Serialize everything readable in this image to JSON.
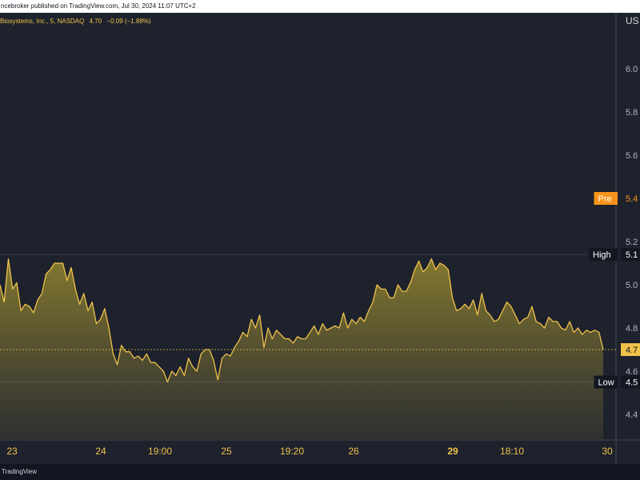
{
  "header": {
    "publisher_text": "ncebroker published on TradingView.com, Jul 30, 2024 11:07 UTC+2"
  },
  "legend": {
    "symbol": "Biosystems, Inc., 5, NASDAQ",
    "last": "4.70",
    "change": "−0.09 (−1.88%)"
  },
  "axis": {
    "currency_label": "US",
    "y_ticks": [
      "6.0",
      "5.8",
      "5.6",
      "5.2",
      "5.0",
      "4.8",
      "4.6",
      "4.4"
    ],
    "x_ticks": [
      "23",
      "24",
      "19:00",
      "25",
      "19:20",
      "26",
      "29",
      "18:10",
      "30"
    ]
  },
  "markers": {
    "pre": {
      "label": "Pre",
      "value": "5.4"
    },
    "high": {
      "label": "High",
      "value": "5.1"
    },
    "last": {
      "value": "4.7"
    },
    "low": {
      "label": "Low",
      "value": "4.5"
    }
  },
  "footer": {
    "brand": "TradingView"
  },
  "colors": {
    "background": "#1e222d",
    "line": "#f0c24a",
    "pre_badge": "#f7931a",
    "axis_text": "#d1d4dc",
    "x_tick_text": "#f0c24a"
  },
  "chart_data": {
    "type": "area",
    "ylim": [
      4.3,
      6.2
    ],
    "high": 5.14,
    "low": 4.55,
    "last": 4.7,
    "pre": 5.4,
    "values": [
      5.0,
      4.92,
      5.12,
      4.98,
      5.01,
      4.88,
      4.91,
      4.9,
      4.87,
      4.93,
      4.96,
      5.05,
      5.07,
      5.1,
      5.1,
      5.1,
      5.02,
      5.08,
      4.98,
      4.91,
      4.96,
      4.88,
      4.92,
      4.82,
      4.84,
      4.89,
      4.8,
      4.68,
      4.63,
      4.72,
      4.69,
      4.69,
      4.66,
      4.67,
      4.65,
      4.68,
      4.64,
      4.64,
      4.62,
      4.6,
      4.55,
      4.6,
      4.58,
      4.62,
      4.58,
      4.66,
      4.62,
      4.6,
      4.68,
      4.7,
      4.7,
      4.65,
      4.56,
      4.66,
      4.68,
      4.67,
      4.71,
      4.74,
      4.78,
      4.76,
      4.84,
      4.8,
      4.86,
      4.71,
      4.8,
      4.75,
      4.79,
      4.77,
      4.75,
      4.75,
      4.73,
      4.76,
      4.75,
      4.75,
      4.78,
      4.81,
      4.77,
      4.82,
      4.79,
      4.8,
      4.81,
      4.8,
      4.87,
      4.8,
      4.84,
      4.82,
      4.85,
      4.83,
      4.88,
      4.92,
      5.0,
      4.98,
      4.98,
      4.94,
      4.94,
      5.0,
      4.97,
      4.97,
      5.01,
      5.07,
      5.11,
      5.06,
      5.08,
      5.12,
      5.07,
      5.1,
      5.09,
      5.07,
      4.94,
      4.88,
      4.89,
      4.91,
      4.89,
      4.93,
      4.86,
      4.96,
      4.88,
      4.86,
      4.83,
      4.84,
      4.88,
      4.92,
      4.9,
      4.86,
      4.82,
      4.84,
      4.85,
      4.9,
      4.83,
      4.82,
      4.8,
      4.85,
      4.83,
      4.83,
      4.8,
      4.79,
      4.83,
      4.78,
      4.8,
      4.77,
      4.79,
      4.78,
      4.79,
      4.78,
      4.7
    ]
  }
}
